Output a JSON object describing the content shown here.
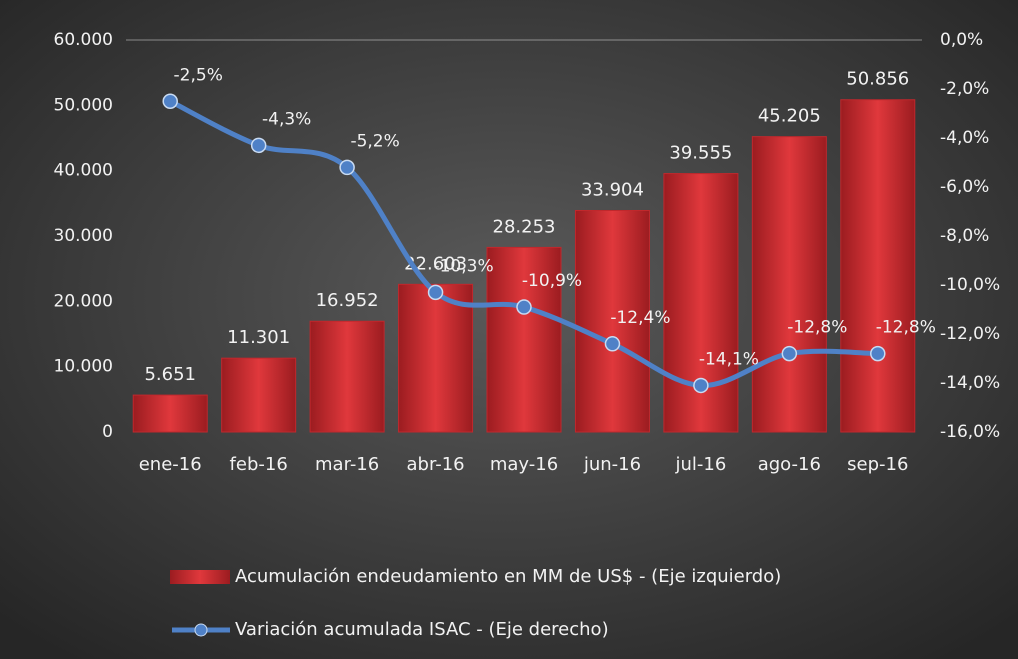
{
  "chart_data": {
    "type": "bar",
    "categories": [
      "ene-16",
      "feb-16",
      "mar-16",
      "abr-16",
      "may-16",
      "jun-16",
      "jul-16",
      "ago-16",
      "sep-16"
    ],
    "series": [
      {
        "name": "Acumulación endeudamiento en MM de US$ - (Eje izquierdo)",
        "color": "#c0282d",
        "type": "bar",
        "values": [
          5651,
          11301,
          16952,
          22603,
          28253,
          33904,
          39555,
          45205,
          50856
        ],
        "value_labels": [
          "5.651",
          "11.301",
          "16.952",
          "22.603",
          "28.253",
          "33.904",
          "39.555",
          "45.205",
          "50.856"
        ]
      },
      {
        "name": "Variación acumulada ISAC - (Eje derecho)",
        "color": "#4f81c7",
        "type": "line",
        "axis": "y2",
        "values": [
          -2.5,
          -4.3,
          -5.2,
          -10.3,
          -10.9,
          -12.4,
          -14.1,
          -12.8,
          -12.8
        ],
        "value_labels": [
          "-2,5%",
          "-4,3%",
          "-5,2%",
          "-10,3%",
          "-10,9%",
          "-12,4%",
          "-14,1%",
          "-12,8%",
          "-12,8%"
        ]
      }
    ],
    "ylim": [
      0,
      60000
    ],
    "yticks": [
      0,
      {
        "value": 10000,
        "label": "10.000"
      },
      {
        "value": 20000,
        "label": "20.000"
      },
      {
        "value": 30000,
        "label": "30.000"
      },
      {
        "value": 40000,
        "label": "40.000"
      },
      {
        "value": 50000,
        "label": "50.000"
      },
      {
        "value": 60000,
        "label": "60.000"
      }
    ],
    "y2lim": [
      -16,
      0
    ],
    "y2ticks": [
      {
        "value": -16,
        "label": "-16,0%"
      },
      {
        "value": -14,
        "label": "-14,0%"
      },
      {
        "value": -12,
        "label": "-12,0%"
      },
      {
        "value": -10,
        "label": "-10,0%"
      },
      {
        "value": -8,
        "label": "-8,0%"
      },
      {
        "value": -6,
        "label": "-6,0%"
      },
      {
        "value": -4,
        "label": "-4,0%"
      },
      {
        "value": -2,
        "label": "-2,0%"
      },
      {
        "value": 0,
        "label": "0,0%"
      }
    ],
    "legend": "bottom"
  }
}
